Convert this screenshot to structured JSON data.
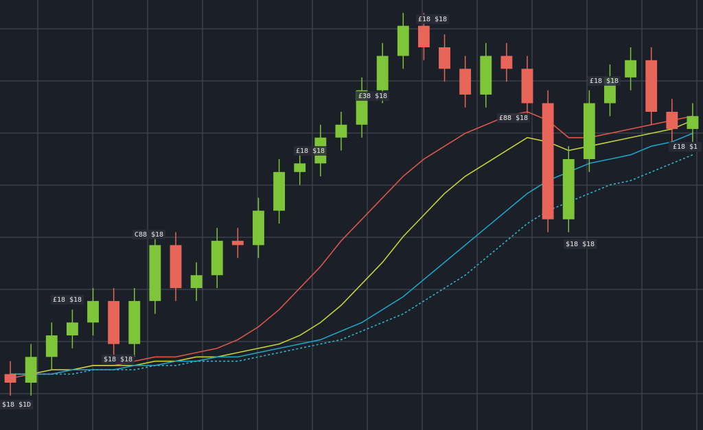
{
  "chart_data": {
    "type": "candlestick",
    "ylim": [
      0,
      100
    ],
    "grid": true,
    "up_color": "#7ec53a",
    "down_color": "#e8655a",
    "open": [
      13,
      11,
      17,
      22,
      25,
      30,
      20,
      30,
      43,
      33,
      36,
      44,
      43,
      51,
      60,
      62,
      68,
      71,
      79,
      87,
      94,
      89,
      84,
      78,
      87,
      84,
      76,
      49,
      63,
      76,
      82,
      86,
      74,
      70
    ],
    "high": [
      16,
      20,
      25,
      28,
      33,
      33,
      33,
      46,
      46,
      39,
      47,
      47,
      54,
      63,
      65,
      71,
      74,
      82,
      90,
      97,
      97,
      92,
      87,
      90,
      90,
      87,
      79,
      66,
      79,
      85,
      89,
      89,
      77,
      76
    ],
    "low": [
      8,
      8,
      14,
      19,
      22,
      17,
      17,
      27,
      30,
      30,
      33,
      40,
      40,
      48,
      57,
      59,
      65,
      68,
      76,
      84,
      86,
      81,
      75,
      75,
      81,
      73,
      46,
      46,
      60,
      73,
      79,
      71,
      67,
      67
    ],
    "close": [
      11,
      17,
      22,
      25,
      30,
      20,
      30,
      43,
      33,
      36,
      44,
      43,
      51,
      60,
      62,
      68,
      71,
      79,
      87,
      94,
      89,
      84,
      78,
      87,
      84,
      76,
      49,
      63,
      76,
      82,
      86,
      74,
      70,
      73
    ],
    "series": [
      {
        "color": "#d9584a",
        "values": [
          12,
          13,
          13,
          14,
          15,
          15,
          16,
          17,
          17,
          18,
          19,
          21,
          24,
          28,
          33,
          38,
          44,
          49,
          54,
          59,
          63,
          66,
          69,
          71,
          73,
          74,
          72,
          68,
          68,
          69,
          70,
          71,
          72,
          73
        ]
      },
      {
        "color": "#c6d23a",
        "values": [
          13,
          13,
          14,
          14,
          15,
          15,
          15,
          16,
          16,
          17,
          17,
          18,
          19,
          20,
          22,
          25,
          29,
          34,
          39,
          45,
          50,
          55,
          59,
          62,
          65,
          68,
          67,
          65,
          66,
          67,
          68,
          69,
          70,
          72
        ]
      },
      {
        "color": "#1fa3c4",
        "values": [
          13,
          13,
          13,
          14,
          14,
          14,
          15,
          15,
          16,
          16,
          17,
          17,
          18,
          19,
          20,
          21,
          23,
          25,
          28,
          31,
          35,
          39,
          43,
          47,
          51,
          55,
          58,
          60,
          62,
          63,
          64,
          66,
          67,
          69
        ]
      },
      {
        "color": "#2fb8c8",
        "dashed": true,
        "values": [
          13,
          13,
          13,
          13,
          14,
          14,
          14,
          15,
          15,
          16,
          16,
          16,
          17,
          18,
          19,
          20,
          21,
          23,
          25,
          27,
          30,
          33,
          36,
          40,
          44,
          48,
          51,
          53,
          55,
          57,
          58,
          60,
          62,
          64
        ]
      }
    ],
    "annotations": [
      "$18 $1D",
      "£18 $18",
      "$18 $18",
      "C88 $18",
      "£18 $18",
      "£38 $18",
      "£18 $18",
      "£88 $18",
      "£18 $18",
      "$18 $18",
      "£18 $1"
    ]
  }
}
